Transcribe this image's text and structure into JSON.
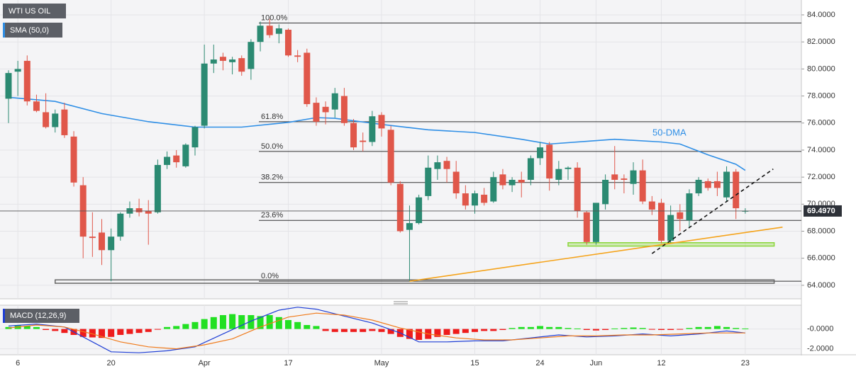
{
  "chart_data": {
    "type": "candlestick",
    "title": "WTI US OIL",
    "up_color": "#2b8a72",
    "down_color": "#e0574a",
    "categories": [
      null,
      "6",
      null,
      null,
      null,
      null,
      null,
      null,
      null,
      null,
      null,
      "20",
      null,
      null,
      null,
      null,
      null,
      null,
      null,
      null,
      null,
      "Apr",
      null,
      null,
      null,
      null,
      null,
      null,
      null,
      null,
      "17",
      null,
      null,
      null,
      null,
      null,
      null,
      null,
      null,
      null,
      "May",
      null,
      null,
      null,
      null,
      null,
      null,
      null,
      null,
      null,
      "15",
      null,
      null,
      null,
      null,
      null,
      null,
      "24",
      null,
      null,
      null,
      null,
      null,
      "Jun",
      null,
      null,
      null,
      null,
      null,
      null,
      "12",
      null,
      null,
      null,
      null,
      null,
      null,
      null,
      null,
      "23"
    ],
    "ohlc": [
      [
        77.8,
        79.9,
        76.0,
        79.7
      ],
      [
        79.8,
        80.6,
        78.0,
        80.0
      ],
      [
        80.6,
        81.0,
        77.3,
        77.6
      ],
      [
        77.6,
        78.1,
        76.8,
        76.9
      ],
      [
        76.8,
        78.2,
        75.6,
        75.7
      ],
      [
        75.7,
        77.0,
        75.3,
        76.7
      ],
      [
        77.0,
        77.5,
        74.9,
        75.1
      ],
      [
        75.0,
        75.4,
        71.3,
        71.6
      ],
      [
        71.4,
        72.0,
        66.0,
        67.6
      ],
      [
        67.6,
        69.4,
        66.1,
        67.5
      ],
      [
        67.9,
        68.9,
        65.5,
        66.6
      ],
      [
        66.6,
        68.2,
        64.3,
        67.6
      ],
      [
        67.6,
        69.4,
        67.3,
        69.3
      ],
      [
        69.3,
        70.2,
        69.0,
        69.7
      ],
      [
        69.7,
        70.4,
        69.1,
        69.4
      ],
      [
        69.5,
        70.3,
        67.0,
        69.3
      ],
      [
        69.4,
        73.3,
        69.3,
        72.9
      ],
      [
        72.9,
        73.9,
        72.6,
        73.5
      ],
      [
        73.6,
        74.0,
        72.7,
        73.1
      ],
      [
        72.8,
        74.5,
        72.7,
        74.4
      ],
      [
        74.2,
        75.8,
        73.6,
        75.7
      ],
      [
        75.8,
        81.8,
        75.6,
        80.4
      ],
      [
        80.4,
        81.8,
        79.7,
        80.7
      ],
      [
        80.9,
        81.2,
        79.9,
        80.6
      ],
      [
        80.5,
        80.9,
        79.6,
        80.7
      ],
      [
        80.8,
        81.0,
        79.5,
        79.8
      ],
      [
        80.0,
        82.2,
        79.2,
        82.0
      ],
      [
        82.0,
        83.5,
        81.3,
        83.2
      ],
      [
        83.2,
        83.7,
        82.3,
        82.5
      ],
      [
        82.6,
        83.3,
        81.9,
        83.0
      ],
      [
        82.9,
        83.0,
        80.9,
        81.0
      ],
      [
        81.0,
        81.4,
        80.5,
        80.9
      ],
      [
        81.2,
        81.5,
        77.2,
        77.4
      ],
      [
        77.5,
        77.9,
        75.8,
        76.1
      ],
      [
        77.2,
        77.6,
        75.9,
        76.8
      ],
      [
        77.0,
        78.6,
        76.4,
        78.2
      ],
      [
        78.0,
        78.6,
        75.8,
        76.0
      ],
      [
        76.0,
        76.3,
        74.0,
        74.2
      ],
      [
        74.7,
        75.3,
        73.9,
        74.6
      ],
      [
        74.6,
        76.9,
        74.3,
        76.5
      ],
      [
        76.6,
        76.8,
        75.0,
        75.6
      ],
      [
        75.5,
        75.8,
        71.4,
        71.6
      ],
      [
        71.5,
        71.7,
        67.9,
        68.0
      ],
      [
        68.1,
        69.9,
        64.3,
        68.6
      ],
      [
        68.6,
        70.7,
        68.5,
        70.5
      ],
      [
        70.6,
        73.6,
        70.3,
        72.7
      ],
      [
        72.6,
        73.6,
        71.8,
        73.1
      ],
      [
        73.2,
        73.5,
        71.6,
        72.6
      ],
      [
        72.4,
        73.2,
        70.4,
        70.8
      ],
      [
        70.8,
        71.4,
        69.6,
        69.9
      ],
      [
        69.9,
        71.0,
        69.3,
        70.8
      ],
      [
        70.7,
        71.2,
        69.9,
        70.1
      ],
      [
        70.2,
        72.4,
        70.1,
        72.0
      ],
      [
        72.2,
        72.6,
        71.1,
        71.4
      ],
      [
        71.4,
        72.0,
        70.9,
        71.8
      ],
      [
        71.8,
        72.4,
        70.5,
        71.6
      ],
      [
        71.8,
        73.6,
        71.4,
        73.4
      ],
      [
        73.4,
        74.6,
        72.9,
        74.2
      ],
      [
        74.4,
        74.6,
        71.0,
        71.9
      ],
      [
        71.8,
        73.2,
        71.4,
        72.6
      ],
      [
        72.6,
        72.8,
        71.8,
        72.7
      ],
      [
        72.7,
        73.1,
        69.0,
        69.5
      ],
      [
        69.4,
        69.5,
        67.0,
        67.2
      ],
      [
        67.2,
        70.0,
        67.0,
        70.1
      ],
      [
        70.0,
        72.2,
        69.6,
        71.8
      ],
      [
        72.2,
        74.3,
        71.1,
        71.8
      ],
      [
        71.9,
        72.2,
        70.8,
        71.8
      ],
      [
        71.5,
        73.1,
        70.7,
        72.5
      ],
      [
        72.5,
        73.3,
        70.0,
        70.2
      ],
      [
        70.2,
        70.6,
        69.2,
        69.6
      ],
      [
        70.1,
        70.4,
        67.1,
        67.3
      ],
      [
        67.3,
        69.9,
        67.1,
        69.2
      ],
      [
        69.4,
        70.0,
        68.0,
        68.9
      ],
      [
        68.8,
        71.1,
        68.3,
        70.8
      ],
      [
        70.8,
        72.0,
        70.6,
        71.8
      ],
      [
        71.7,
        71.9,
        71.0,
        71.2
      ],
      [
        71.7,
        72.4,
        70.6,
        71.2
      ],
      [
        70.5,
        72.8,
        70.2,
        72.4
      ],
      [
        72.4,
        72.6,
        68.9,
        69.7
      ],
      [
        69.5,
        69.7,
        69.3,
        69.5
      ]
    ],
    "ylim": [
      63.0,
      85.1
    ],
    "yticks": [
      {
        "value": 64,
        "label": "64.0000"
      },
      {
        "value": 66,
        "label": "66.0000"
      },
      {
        "value": 68,
        "label": "68.0000"
      },
      {
        "value": 70,
        "label": "70.0000"
      },
      {
        "value": 72,
        "label": "72.0000"
      },
      {
        "value": 74,
        "label": "74.0000"
      },
      {
        "value": 76,
        "label": "76.0000"
      },
      {
        "value": 78,
        "label": "78.0000"
      },
      {
        "value": 80,
        "label": "80.0000"
      },
      {
        "value": 82,
        "label": "82.0000"
      },
      {
        "value": 84,
        "label": "84.0000"
      }
    ],
    "last_price": {
      "value": 69.497,
      "label": "69.4970"
    },
    "sma": {
      "legend": "SMA (50,0)",
      "label": "50-DMA",
      "color": "#2f8fe6",
      "x": [
        0,
        5,
        10,
        15,
        20,
        25,
        30,
        33,
        35,
        40,
        45,
        50,
        55,
        58,
        62,
        65,
        70,
        72,
        75,
        78,
        79
      ],
      "values": [
        77.9,
        77.6,
        76.7,
        76.1,
        75.7,
        75.7,
        76.05,
        76.4,
        76.35,
        75.9,
        75.5,
        75.3,
        74.8,
        74.45,
        74.65,
        74.8,
        74.6,
        74.45,
        73.65,
        72.95,
        72.5
      ]
    },
    "fibonacci": [
      {
        "label": "100.0%",
        "value": 83.4
      },
      {
        "label": "61.8%",
        "value": 76.1
      },
      {
        "label": "50.0%",
        "value": 73.9
      },
      {
        "label": "38.2%",
        "value": 71.6
      },
      {
        "label": "23.6%",
        "value": 68.8
      },
      {
        "label": "0.0%",
        "value": 64.3
      }
    ],
    "trendlines": [
      {
        "color": "#f5a31a",
        "dashed": false,
        "x": [
          43,
          83
        ],
        "y": [
          64.3,
          68.3
        ]
      },
      {
        "color": "#111111",
        "dashed": true,
        "x": [
          69,
          82
        ],
        "y": [
          66.35,
          72.6
        ]
      }
    ],
    "zones": [
      {
        "color": "#8bd63a",
        "x": [
          60,
          82.1
        ],
        "y": [
          66.9,
          67.15
        ]
      },
      {
        "color": "#666666",
        "x": [
          5,
          82.1
        ],
        "y": [
          64.15,
          64.4
        ]
      }
    ],
    "macd": {
      "title": "MACD (12,26,9)",
      "ylim": [
        -2.6,
        2.4
      ],
      "yticks": [
        {
          "value": 0,
          "label": "-0.0000"
        },
        {
          "value": -2,
          "label": "-2.0000"
        }
      ],
      "up_color": "#22e022",
      "down_color": "#ee1c1c",
      "histogram": [
        0.2,
        0.4,
        0.3,
        0.2,
        -0.1,
        -0.2,
        -0.4,
        -0.6,
        -0.8,
        -0.85,
        -0.9,
        -0.8,
        -0.6,
        -0.5,
        -0.4,
        -0.3,
        -0.05,
        0.2,
        0.3,
        0.5,
        0.7,
        1.0,
        1.2,
        1.4,
        1.5,
        1.4,
        1.4,
        1.3,
        1.4,
        1.2,
        0.9,
        0.7,
        0.4,
        0.3,
        -0.2,
        -0.3,
        -0.3,
        -0.3,
        -0.3,
        -0.2,
        -0.3,
        -0.5,
        -0.8,
        -1.0,
        -1.1,
        -1.0,
        -0.8,
        -0.6,
        -0.5,
        -0.4,
        -0.3,
        -0.2,
        -0.2,
        -0.1,
        0.1,
        0.2,
        0.2,
        0.3,
        0.2,
        0.2,
        0.1,
        0.05,
        -0.1,
        -0.15,
        -0.1,
        0.05,
        0.1,
        0.15,
        0.1,
        -0.05,
        -0.1,
        -0.1,
        -0.05,
        0.1,
        0.2,
        0.2,
        0.3,
        0.2,
        0.1,
        0.05
      ],
      "lines": [
        {
          "color": "#1f3fd6",
          "x": [
            0,
            3,
            6,
            9,
            11,
            14,
            17,
            20,
            23,
            26,
            29,
            31,
            33,
            36,
            39,
            42,
            44,
            47,
            50,
            53,
            56,
            59,
            62,
            65,
            68,
            71,
            74,
            77,
            79
          ],
          "values": [
            0.3,
            0.5,
            0.2,
            -1.3,
            -2.3,
            -2.4,
            -2.2,
            -1.8,
            -0.5,
            0.8,
            1.9,
            2.2,
            2.0,
            1.3,
            0.6,
            -0.4,
            -1.3,
            -1.3,
            -1.2,
            -1.2,
            -0.9,
            -0.6,
            -0.8,
            -0.7,
            -0.5,
            -0.7,
            -0.5,
            -0.2,
            -0.4
          ]
        },
        {
          "color": "#f07a1a",
          "x": [
            0,
            3,
            6,
            9,
            12,
            15,
            18,
            21,
            24,
            27,
            30,
            33,
            36,
            39,
            42,
            45,
            48,
            51,
            54,
            57,
            60,
            63,
            66,
            69,
            72,
            75,
            79
          ],
          "values": [
            0.1,
            0.4,
            0.2,
            -0.5,
            -1.3,
            -1.8,
            -2.0,
            -1.6,
            -1.0,
            0.2,
            1.2,
            1.6,
            1.4,
            0.9,
            0.1,
            -0.5,
            -0.9,
            -1.1,
            -1.1,
            -0.9,
            -0.7,
            -0.7,
            -0.6,
            -0.6,
            -0.5,
            -0.4,
            -0.4
          ]
        }
      ]
    }
  }
}
